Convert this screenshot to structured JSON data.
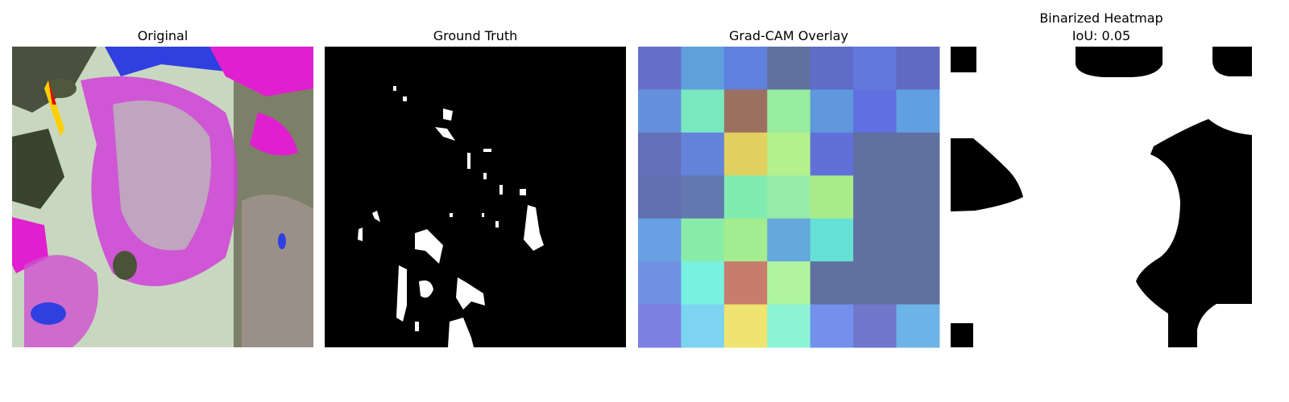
{
  "panels": [
    {
      "title": "Original"
    },
    {
      "title": "Ground Truth"
    },
    {
      "title": "Grad-CAM Overlay"
    },
    {
      "title": "Binarized Heatmap",
      "subtitle": "IoU: 0.05"
    }
  ]
}
